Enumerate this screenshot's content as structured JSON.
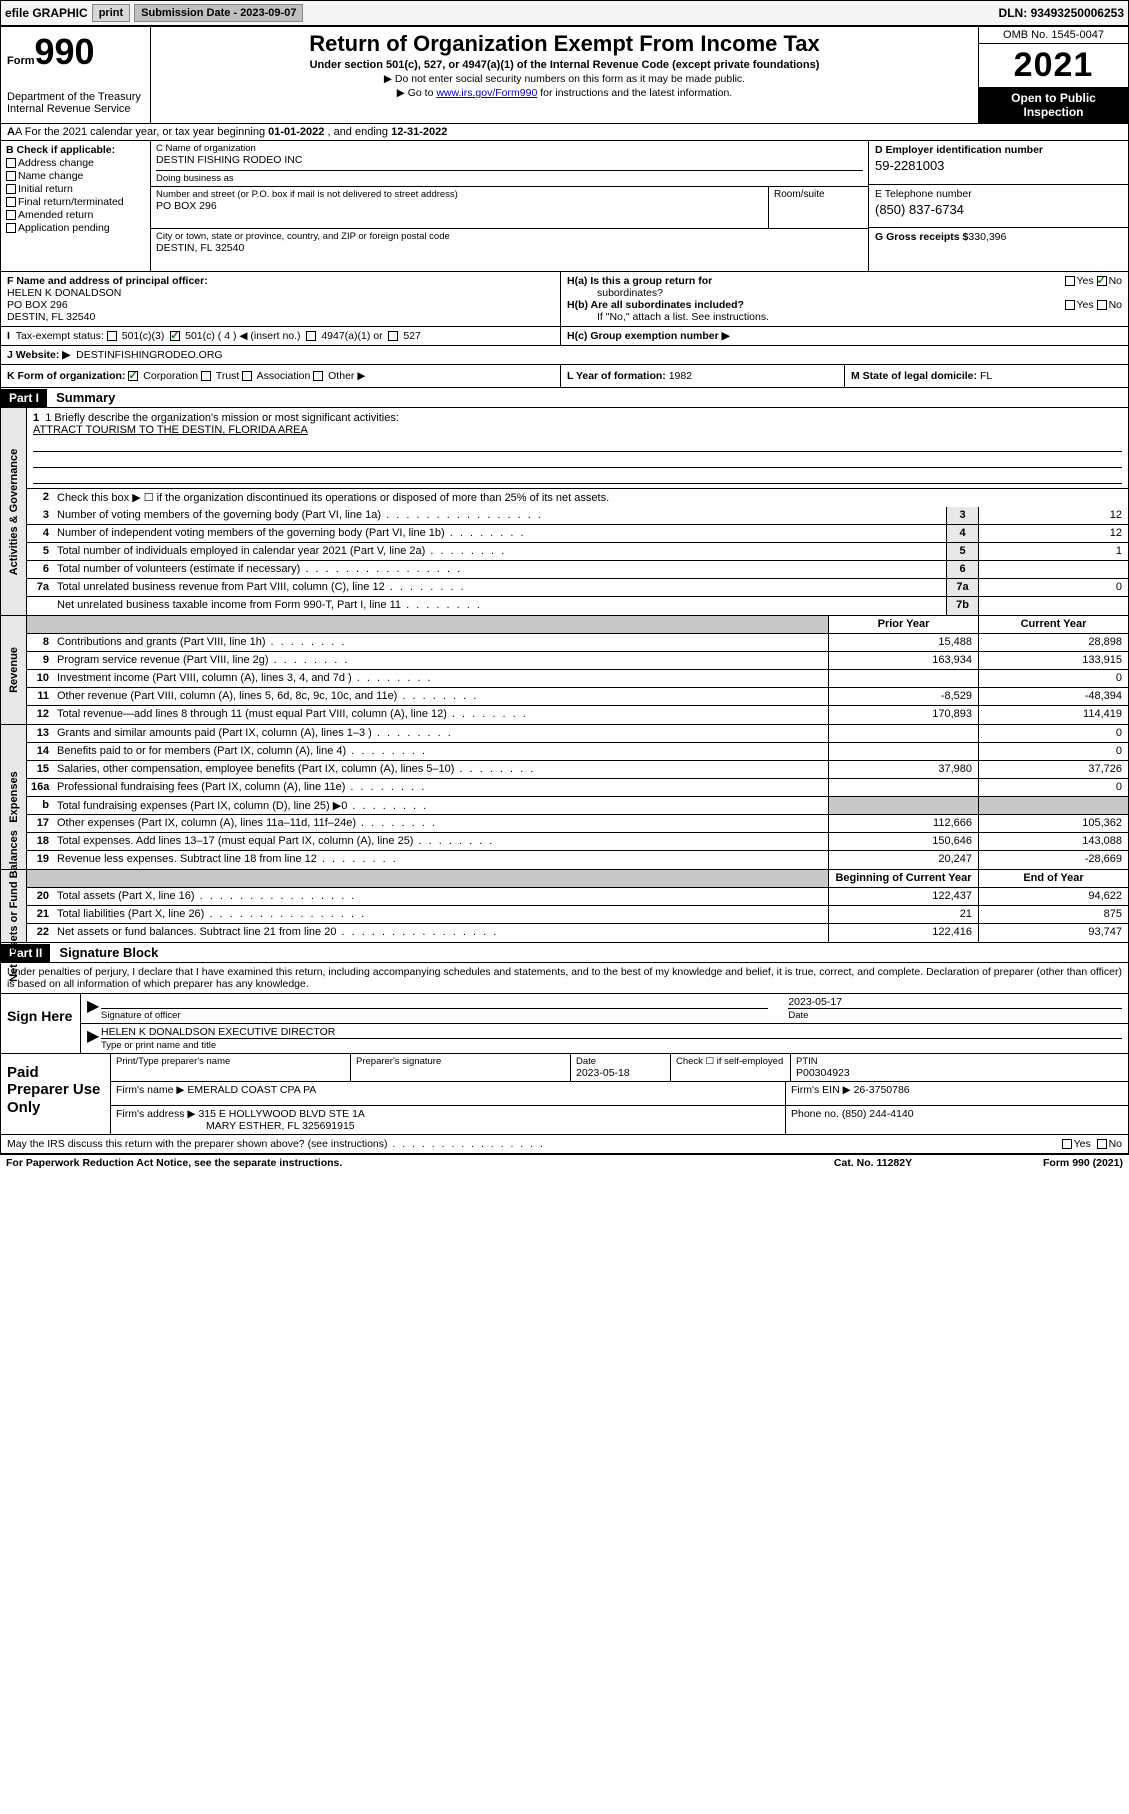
{
  "topbar": {
    "efile_label": "efile GRAPHIC",
    "print_btn": "print",
    "submission_label": "Submission Date",
    "submission_date": "2023-09-07",
    "dln_label": "DLN:",
    "dln_value": "93493250006253"
  },
  "header": {
    "form_word": "Form",
    "form_num": "990",
    "title": "Return of Organization Exempt From Income Tax",
    "sub1": "Under section 501(c), 527, or 4947(a)(1) of the Internal Revenue Code (except private foundations)",
    "sub2": "▶ Do not enter social security numbers on this form as it may be made public.",
    "sub3_prefix": "▶ Go to ",
    "sub3_link": "www.irs.gov/Form990",
    "sub3_suffix": " for instructions and the latest information.",
    "dept": "Department of the Treasury",
    "irs": "Internal Revenue Service",
    "omb": "OMB No. 1545-0047",
    "year": "2021",
    "open": "Open to Public Inspection"
  },
  "row_a": {
    "text_prefix": "A For the 2021 calendar year, or tax year beginning ",
    "begin": "01-01-2022",
    "mid": " , and ending ",
    "end": "12-31-2022"
  },
  "col_b": {
    "label": "B Check if applicable:",
    "items": [
      "Address change",
      "Name change",
      "Initial return",
      "Final return/terminated",
      "Amended return",
      "Application pending"
    ]
  },
  "col_c": {
    "name_hint": "C Name of organization",
    "name": "DESTIN FISHING RODEO INC",
    "dba_hint": "Doing business as",
    "dba": "",
    "street_hint": "Number and street (or P.O. box if mail is not delivered to street address)",
    "street": "PO BOX 296",
    "suite_hint": "Room/suite",
    "suite": "",
    "city_hint": "City or town, state or province, country, and ZIP or foreign postal code",
    "city": "DESTIN, FL  32540"
  },
  "col_d": {
    "ein_label": "D Employer identification number",
    "ein": "59-2281003",
    "phone_label": "E Telephone number",
    "phone": "(850) 837-6734",
    "gross_label": "G Gross receipts $",
    "gross": "330,396"
  },
  "col_f": {
    "label": "F Name and address of principal officer:",
    "name": "HELEN K DONALDSON",
    "addr1": "PO BOX 296",
    "addr2": "DESTIN, FL  32540"
  },
  "col_h": {
    "ha_label": "H(a)  Is this a group return for",
    "ha_sub": "subordinates?",
    "hb_label": "H(b)  Are all subordinates included?",
    "hb_note": "If \"No,\" attach a list. See instructions.",
    "hc_label": "H(c)  Group exemption number ▶",
    "yes": "Yes",
    "no": "No"
  },
  "row_i": {
    "label": "I  Tax-exempt status:",
    "opt1": "501(c)(3)",
    "opt2": "501(c) ( 4 ) ◀ (insert no.)",
    "opt3": "4947(a)(1) or",
    "opt4": "527"
  },
  "row_j": {
    "label": "J  Website: ▶",
    "value": "DESTINFISHINGRODEO.ORG"
  },
  "row_k": {
    "label": "K Form of organization:",
    "opts": [
      "Corporation",
      "Trust",
      "Association",
      "Other ▶"
    ],
    "l_label": "L Year of formation:",
    "l_val": "1982",
    "m_label": "M State of legal domicile:",
    "m_val": "FL"
  },
  "part1": {
    "hdr": "Part I",
    "title": "Summary"
  },
  "mission": {
    "q1_prefix": "1  Briefly describe the organization's mission or most significant activities:",
    "text": "ATTRACT TOURISM TO THE DESTIN, FLORIDA AREA"
  },
  "gov_lines": {
    "l2": "Check this box ▶ ☐  if the organization discontinued its operations or disposed of more than 25% of its net assets.",
    "l3": "Number of voting members of the governing body (Part VI, line 1a)",
    "l3v": "12",
    "l4": "Number of independent voting members of the governing body (Part VI, line 1b)",
    "l4v": "12",
    "l5": "Total number of individuals employed in calendar year 2021 (Part V, line 2a)",
    "l5v": "1",
    "l6": "Total number of volunteers (estimate if necessary)",
    "l6v": "",
    "l7a": "Total unrelated business revenue from Part VIII, column (C), line 12",
    "l7av": "0",
    "l7b": "Net unrelated business taxable income from Form 990-T, Part I, line 11",
    "l7bv": ""
  },
  "rev_hdr": {
    "prior": "Prior Year",
    "curr": "Current Year"
  },
  "revenue": [
    {
      "n": "8",
      "d": "Contributions and grants (Part VIII, line 1h)",
      "p": "15,488",
      "c": "28,898"
    },
    {
      "n": "9",
      "d": "Program service revenue (Part VIII, line 2g)",
      "p": "163,934",
      "c": "133,915"
    },
    {
      "n": "10",
      "d": "Investment income (Part VIII, column (A), lines 3, 4, and 7d )",
      "p": "",
      "c": "0"
    },
    {
      "n": "11",
      "d": "Other revenue (Part VIII, column (A), lines 5, 6d, 8c, 9c, 10c, and 11e)",
      "p": "-8,529",
      "c": "-48,394"
    },
    {
      "n": "12",
      "d": "Total revenue—add lines 8 through 11 (must equal Part VIII, column (A), line 12)",
      "p": "170,893",
      "c": "114,419"
    }
  ],
  "expenses": [
    {
      "n": "13",
      "d": "Grants and similar amounts paid (Part IX, column (A), lines 1–3 )",
      "p": "",
      "c": "0"
    },
    {
      "n": "14",
      "d": "Benefits paid to or for members (Part IX, column (A), line 4)",
      "p": "",
      "c": "0"
    },
    {
      "n": "15",
      "d": "Salaries, other compensation, employee benefits (Part IX, column (A), lines 5–10)",
      "p": "37,980",
      "c": "37,726"
    },
    {
      "n": "16a",
      "d": "Professional fundraising fees (Part IX, column (A), line 11e)",
      "p": "",
      "c": "0"
    },
    {
      "n": "b",
      "d": "Total fundraising expenses (Part IX, column (D), line 25) ▶0",
      "p": "GREY",
      "c": "GREY"
    },
    {
      "n": "17",
      "d": "Other expenses (Part IX, column (A), lines 11a–11d, 11f–24e)",
      "p": "112,666",
      "c": "105,362"
    },
    {
      "n": "18",
      "d": "Total expenses. Add lines 13–17 (must equal Part IX, column (A), line 25)",
      "p": "150,646",
      "c": "143,088"
    },
    {
      "n": "19",
      "d": "Revenue less expenses. Subtract line 18 from line 12",
      "p": "20,247",
      "c": "-28,669"
    }
  ],
  "net_hdr": {
    "prior": "Beginning of Current Year",
    "curr": "End of Year"
  },
  "netassets": [
    {
      "n": "20",
      "d": "Total assets (Part X, line 16)",
      "p": "122,437",
      "c": "94,622"
    },
    {
      "n": "21",
      "d": "Total liabilities (Part X, line 26)",
      "p": "21",
      "c": "875"
    },
    {
      "n": "22",
      "d": "Net assets or fund balances. Subtract line 21 from line 20",
      "p": "122,416",
      "c": "93,747"
    }
  ],
  "vtabs": {
    "gov": "Activities & Governance",
    "rev": "Revenue",
    "exp": "Expenses",
    "net": "Net Assets or Fund Balances"
  },
  "part2": {
    "hdr": "Part II",
    "title": "Signature Block",
    "intro": "Under penalties of perjury, I declare that I have examined this return, including accompanying schedules and statements, and to the best of my knowledge and belief, it is true, correct, and complete. Declaration of preparer (other than officer) is based on all information of which preparer has any knowledge."
  },
  "sign": {
    "left": "Sign Here",
    "sig_label": "Signature of officer",
    "date_label": "Date",
    "date_val": "2023-05-17",
    "name_val": "HELEN K DONALDSON  EXECUTIVE DIRECTOR",
    "name_label": "Type or print name and title"
  },
  "paid": {
    "left": "Paid Preparer Use Only",
    "r1": {
      "c1_hint": "Print/Type preparer's name",
      "c2_hint": "Preparer's signature",
      "c3_hint": "Date",
      "c3_val": "2023-05-18",
      "c4_label": "Check ☐ if self-employed",
      "c5_hint": "PTIN",
      "c5_val": "P00304923"
    },
    "r2": {
      "c1_label": "Firm's name    ▶",
      "c1_val": "EMERALD COAST CPA PA",
      "c2_label": "Firm's EIN ▶",
      "c2_val": "26-3750786"
    },
    "r3": {
      "c1_label": "Firm's address ▶",
      "c1_val": "315 E HOLLYWOOD BLVD STE 1A",
      "c1_val2": "MARY ESTHER, FL  325691915",
      "c2_label": "Phone no.",
      "c2_val": "(850) 244-4140"
    }
  },
  "footer": {
    "discuss": "May the IRS discuss this return with the preparer shown above? (see instructions)",
    "yes": "Yes",
    "no": "No",
    "paperwork": "For Paperwork Reduction Act Notice, see the separate instructions.",
    "cat": "Cat. No. 11282Y",
    "form": "Form 990 (2021)"
  }
}
